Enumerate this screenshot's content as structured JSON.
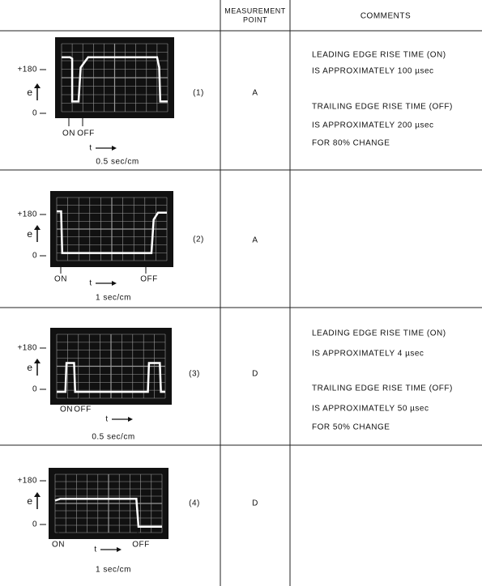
{
  "header": {
    "measurement_point": [
      "MEASUREMENT",
      "POINT"
    ],
    "comments": "COMMENTS"
  },
  "rows": [
    {
      "number": "(1)",
      "y_high": "+180",
      "y_low": "0",
      "y_axis": "e",
      "on": "ON",
      "off": "OFF",
      "time_axis": "t",
      "timebase": "0.5 sec/cm",
      "point": "A",
      "comments": [
        [
          "LEADING EDGE RISE TIME (ON)",
          "IS APPROXIMATELY 100 µsec"
        ],
        [
          "TRAILING EDGE RISE TIME (OFF)",
          "IS APPROXIMATELY 200 µsec",
          "FOR 80% CHANGE"
        ]
      ]
    },
    {
      "number": "(2)",
      "y_high": "+180",
      "y_low": "0",
      "y_axis": "e",
      "on": "ON",
      "off": "OFF",
      "time_axis": "t",
      "timebase": "1 sec/cm",
      "point": "A"
    },
    {
      "number": "(3)",
      "y_high": "+180",
      "y_low": "0",
      "y_axis": "e",
      "on": "ON",
      "off": "OFF",
      "time_axis": "t",
      "timebase": "0.5 sec/cm",
      "point": "D",
      "comments": [
        [
          "LEADING EDGE RISE TIME (ON)",
          "IS APPROXIMATELY 4 µsec"
        ],
        [
          "TRAILING EDGE RISE TIME (OFF)",
          "IS APPROXIMATELY 50 µsec",
          "FOR 50% CHANGE"
        ]
      ]
    },
    {
      "number": "(4)",
      "y_high": "+180",
      "y_low": "0",
      "y_axis": "e",
      "on": "ON",
      "off": "OFF",
      "time_axis": "t",
      "timebase": "1 sec/cm",
      "point": "D"
    }
  ]
}
